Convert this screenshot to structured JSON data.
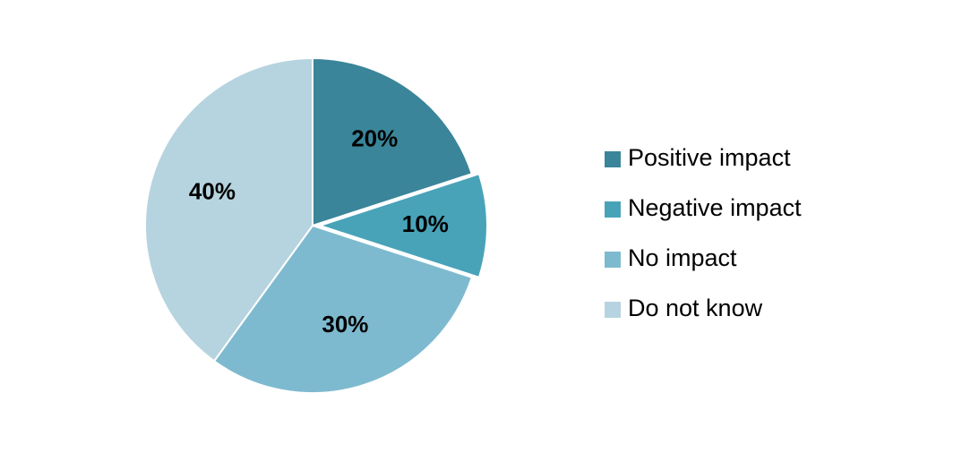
{
  "chart_data": {
    "type": "pie",
    "categories": [
      "Positive impact",
      "Negative impact",
      "No impact",
      "Do not know"
    ],
    "values": [
      20,
      10,
      30,
      40
    ],
    "value_labels": [
      "20%",
      "10%",
      "30%",
      "40%"
    ],
    "colors": [
      "#3a8599",
      "#48a3b8",
      "#7ebacf",
      "#b6d4df"
    ],
    "legend": "right"
  }
}
